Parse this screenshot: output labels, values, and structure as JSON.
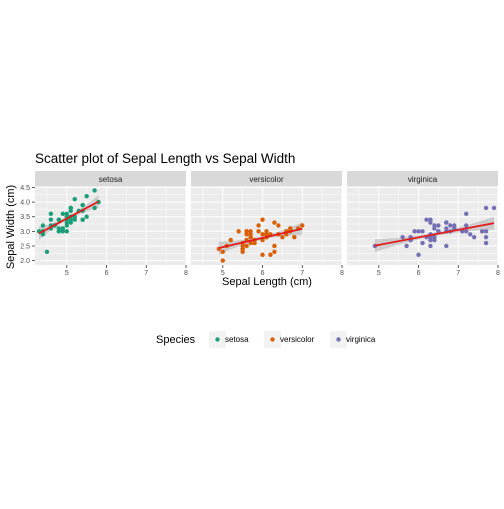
{
  "chart_data": {
    "type": "scatter",
    "title": "Scatter plot of Sepal Length  vs Sepal Width",
    "xlabel": "Sepal Length (cm)",
    "ylabel": "Sepal Width (cm)",
    "xlim": [
      4.2,
      8.0
    ],
    "ylim": [
      1.85,
      4.55
    ],
    "x_ticks": [
      5,
      6,
      7,
      8
    ],
    "y_ticks": [
      2.0,
      2.5,
      3.0,
      3.5,
      4.0,
      4.5
    ],
    "y_tick_labels": [
      "2.0",
      "2.5",
      "3.0",
      "3.5",
      "4.0",
      "4.5"
    ],
    "grid": true,
    "legend_position": "bottom",
    "legend_title": "Species",
    "fit_line_color": "#e41a1c",
    "panels": [
      {
        "name": "setosa",
        "color": "#1b9e77",
        "fit": {
          "x0": 4.3,
          "y0": 2.93,
          "x1": 5.8,
          "y1": 4.02
        },
        "x": [
          5.1,
          4.9,
          4.7,
          4.6,
          5.0,
          5.4,
          4.6,
          5.0,
          4.4,
          4.9,
          5.4,
          4.8,
          4.8,
          4.3,
          5.8,
          5.7,
          5.4,
          5.1,
          5.7,
          5.1,
          5.4,
          5.1,
          4.6,
          5.1,
          4.8,
          5.0,
          5.0,
          5.2,
          5.2,
          4.7,
          4.8,
          5.4,
          5.2,
          5.5,
          4.9,
          5.0,
          5.5,
          4.9,
          4.4,
          5.1,
          5.0,
          4.5,
          4.4,
          5.0,
          5.1,
          4.8,
          5.1,
          4.6,
          5.3,
          5.0
        ],
        "y": [
          3.5,
          3.0,
          3.2,
          3.1,
          3.6,
          3.9,
          3.4,
          3.4,
          2.9,
          3.1,
          3.7,
          3.4,
          3.0,
          3.0,
          4.0,
          4.4,
          3.9,
          3.5,
          3.8,
          3.8,
          3.4,
          3.7,
          3.6,
          3.3,
          3.4,
          3.0,
          3.4,
          3.5,
          3.4,
          3.2,
          3.1,
          3.4,
          4.1,
          4.2,
          3.1,
          3.2,
          3.5,
          3.6,
          3.0,
          3.4,
          3.5,
          2.3,
          3.2,
          3.5,
          3.8,
          3.0,
          3.8,
          3.2,
          3.7,
          3.3
        ]
      },
      {
        "name": "versicolor",
        "color": "#d95f02",
        "fit": {
          "x0": 4.9,
          "y0": 2.43,
          "x1": 7.0,
          "y1": 3.09
        },
        "x": [
          7.0,
          6.4,
          6.9,
          5.5,
          6.5,
          5.7,
          6.3,
          4.9,
          6.6,
          5.2,
          5.0,
          5.9,
          6.0,
          6.1,
          5.6,
          6.7,
          5.6,
          5.8,
          6.2,
          5.6,
          5.9,
          6.1,
          6.3,
          6.1,
          6.4,
          6.6,
          6.8,
          6.7,
          6.0,
          5.7,
          5.5,
          5.5,
          5.8,
          6.0,
          5.4,
          6.0,
          6.7,
          6.3,
          5.6,
          5.5,
          5.5,
          6.1,
          5.8,
          5.0,
          5.6,
          5.7,
          5.7,
          6.2,
          5.1,
          5.7
        ],
        "y": [
          3.2,
          3.2,
          3.1,
          2.3,
          2.8,
          2.8,
          3.3,
          2.4,
          2.9,
          2.7,
          2.0,
          3.0,
          2.2,
          2.9,
          2.9,
          3.1,
          3.0,
          2.7,
          2.2,
          2.5,
          3.2,
          2.8,
          2.5,
          2.8,
          2.9,
          3.0,
          2.8,
          3.0,
          2.9,
          2.6,
          2.4,
          2.4,
          2.7,
          2.7,
          3.0,
          3.4,
          3.1,
          2.3,
          3.0,
          2.5,
          2.6,
          3.0,
          2.6,
          2.3,
          2.7,
          3.0,
          2.9,
          2.9,
          2.5,
          2.8
        ]
      },
      {
        "name": "virginica",
        "color": "#7570b3",
        "fit": {
          "x0": 4.9,
          "y0": 2.51,
          "x1": 7.9,
          "y1": 3.28
        },
        "x": [
          6.3,
          5.8,
          7.1,
          6.3,
          6.5,
          7.6,
          4.9,
          7.3,
          6.7,
          7.2,
          6.5,
          6.4,
          6.8,
          5.7,
          5.8,
          6.4,
          6.5,
          7.7,
          7.7,
          6.0,
          6.9,
          5.6,
          7.7,
          6.3,
          6.7,
          7.2,
          6.2,
          6.1,
          6.4,
          7.2,
          7.4,
          7.9,
          6.4,
          6.3,
          6.1,
          7.7,
          6.3,
          6.4,
          6.0,
          6.9,
          6.7,
          6.9,
          5.8,
          6.8,
          6.7,
          6.7,
          6.3,
          6.5,
          6.2,
          5.9
        ],
        "y": [
          3.3,
          2.7,
          3.0,
          2.9,
          3.0,
          3.0,
          2.5,
          2.9,
          2.5,
          3.6,
          3.2,
          2.7,
          3.0,
          2.5,
          2.8,
          3.2,
          3.0,
          3.8,
          2.6,
          2.2,
          3.2,
          2.8,
          2.8,
          2.7,
          3.3,
          3.2,
          2.8,
          3.0,
          2.8,
          3.0,
          2.8,
          3.8,
          2.8,
          2.8,
          2.6,
          3.0,
          3.4,
          3.1,
          3.0,
          3.1,
          3.1,
          3.1,
          2.7,
          3.2,
          3.3,
          3.0,
          2.5,
          3.0,
          3.4,
          3.0
        ]
      }
    ]
  }
}
